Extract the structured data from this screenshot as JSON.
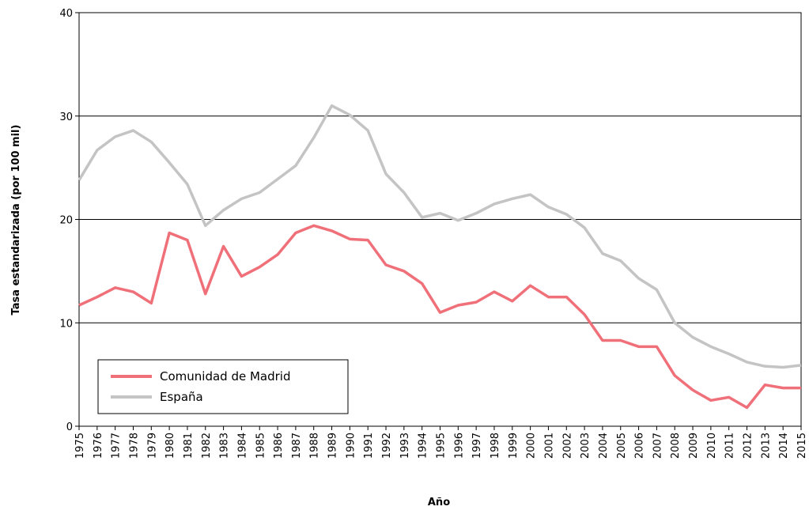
{
  "chart_data": {
    "type": "line",
    "y_label": "Tasa estandarizada (por 100 mil)",
    "x_label": "Año",
    "categories": [
      "1975",
      "1976",
      "1977",
      "1978",
      "1979",
      "1980",
      "1981",
      "1982",
      "1983",
      "1984",
      "1985",
      "1986",
      "1987",
      "1988",
      "1989",
      "1990",
      "1991",
      "1992",
      "1993",
      "1994",
      "1995",
      "1996",
      "1997",
      "1998",
      "1999",
      "2000",
      "2001",
      "2002",
      "2003",
      "2004",
      "2005",
      "2006",
      "2007",
      "2008",
      "2009",
      "2010",
      "2011",
      "2012",
      "2013",
      "2014",
      "2015"
    ],
    "series": [
      {
        "name": "Comunidad de Madrid",
        "color": "#f0707a",
        "values": [
          11.7,
          12.5,
          13.4,
          13.0,
          11.9,
          18.7,
          18.0,
          12.8,
          17.4,
          14.5,
          15.4,
          16.6,
          18.7,
          19.4,
          18.9,
          18.1,
          18.0,
          15.6,
          15.0,
          13.8,
          11.0,
          11.7,
          12.0,
          13.0,
          12.1,
          13.6,
          12.5,
          12.5,
          10.8,
          8.3,
          8.3,
          7.7,
          7.7,
          4.9,
          3.5,
          2.5,
          2.8,
          1.8,
          4.0,
          3.7,
          3.7
        ]
      },
      {
        "name": "España",
        "color": "#c4c4c4",
        "values": [
          23.8,
          26.7,
          28.0,
          28.6,
          27.5,
          25.5,
          23.4,
          19.4,
          20.9,
          22.0,
          22.6,
          23.9,
          25.2,
          27.9,
          31.0,
          30.1,
          28.6,
          24.4,
          22.6,
          20.2,
          20.6,
          19.9,
          20.6,
          21.5,
          22.0,
          22.4,
          21.2,
          20.5,
          19.2,
          16.7,
          16.0,
          14.3,
          13.2,
          10.0,
          8.6,
          7.7,
          7.0,
          6.2,
          5.8,
          5.7,
          5.9
        ]
      }
    ],
    "ylim": [
      0,
      40
    ],
    "yticks": [
      0,
      10,
      20,
      30,
      40
    ],
    "grid": true,
    "legend": "lower left"
  }
}
